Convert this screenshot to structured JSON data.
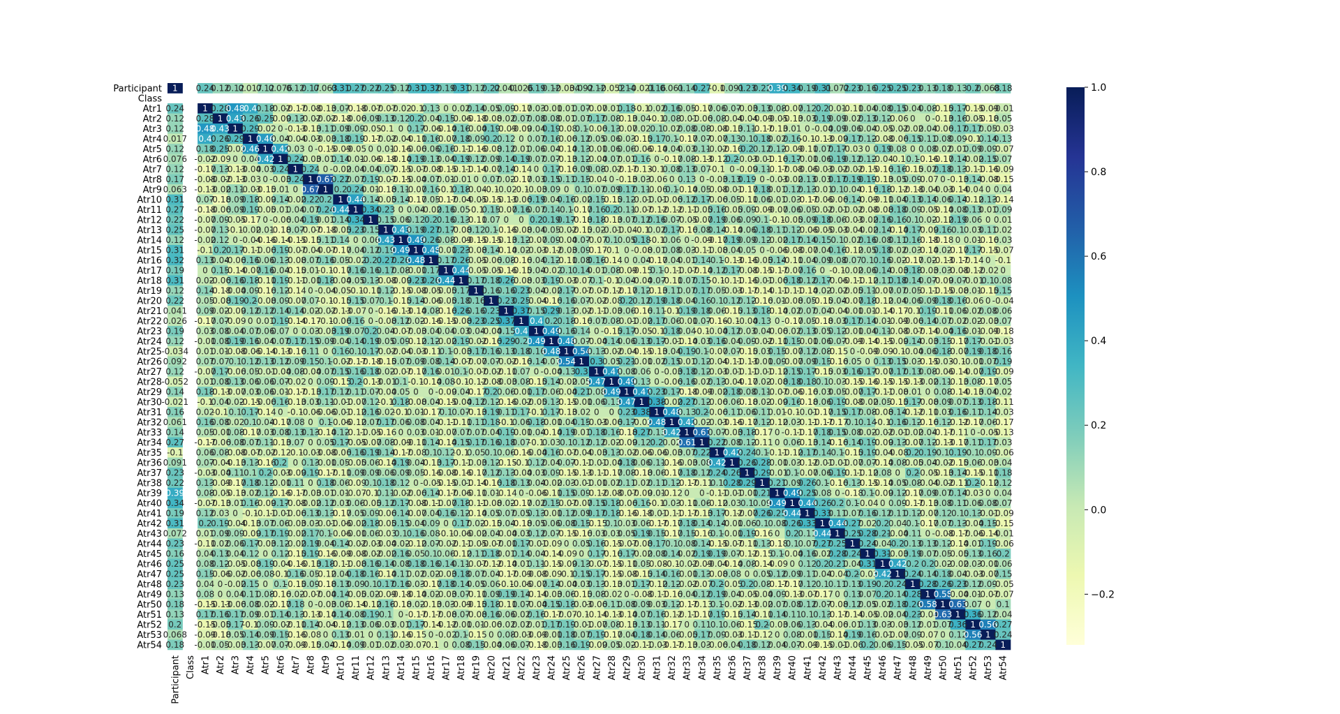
{
  "chart_data": {
    "type": "heatmap",
    "title": "",
    "xlabel": "",
    "ylabel": "",
    "row_labels": [
      "Participant",
      "Class",
      "Atr1",
      "Atr2",
      "Atr3",
      "Atr4",
      "Atr5",
      "Atr6",
      "Atr7",
      "Atr8",
      "Atr9",
      "Atr10",
      "Atr11",
      "Atr12",
      "Atr13",
      "Atr14",
      "Atr15",
      "Atr16",
      "Atr17",
      "Atr18",
      "Atr19",
      "Atr20",
      "Atr21",
      "Atr22",
      "Atr23",
      "Atr24",
      "Atr25",
      "Atr26",
      "Atr27",
      "Atr28",
      "Atr29",
      "Atr30",
      "Atr31",
      "Atr32",
      "Atr33",
      "Atr34",
      "Atr35",
      "Atr36",
      "Atr37",
      "Atr38",
      "Atr39",
      "Atr40",
      "Atr41",
      "Atr42",
      "Atr43",
      "Atr44",
      "Atr45",
      "Atr46",
      "Atr47",
      "Atr48",
      "Atr49",
      "Atr50",
      "Atr51",
      "Atr52",
      "Atr53",
      "Atr54"
    ],
    "col_labels": [
      "Participant",
      "Class",
      "Atr1",
      "Atr2",
      "Atr3",
      "Atr4",
      "Atr5",
      "Atr6",
      "Atr7",
      "Atr8",
      "Atr9",
      "Atr10",
      "Atr11",
      "Atr12",
      "Atr13",
      "Atr14",
      "Atr15",
      "Atr16",
      "Atr17",
      "Atr18",
      "Atr19",
      "Atr20",
      "Atr21",
      "Atr22",
      "Atr23",
      "Atr24",
      "Atr25",
      "Atr26",
      "Atr27",
      "Atr28",
      "Atr29",
      "Atr30",
      "Atr31",
      "Atr32",
      "Atr33",
      "Atr34",
      "Atr35",
      "Atr36",
      "Atr37",
      "Atr38",
      "Atr39",
      "Atr40",
      "Atr41",
      "Atr42",
      "Atr43",
      "Atr44",
      "Atr45",
      "Atr46",
      "Atr47",
      "Atr48",
      "Atr49",
      "Atr50",
      "Atr51",
      "Atr52",
      "Atr53",
      "Atr54"
    ],
    "participant_correlations": [
      1,
      null,
      0.24,
      0.12,
      0.12,
      0.017,
      0.12,
      0.076,
      0.12,
      0.17,
      0.063,
      0.31,
      0.27,
      0.22,
      0.25,
      0.12,
      0.31,
      0.32,
      0.19,
      0.31,
      0.12,
      0.22,
      0.041,
      0.026,
      0.19,
      0.12,
      -0.034,
      0.092,
      0.12,
      -0.052,
      0.14,
      -0.021,
      0.16,
      0.061,
      0.14,
      0.27,
      -0.1,
      0.091,
      0.23,
      0.22,
      0.39,
      0.34,
      0.19,
      0.31,
      0.072,
      0.23,
      0.16,
      0.25,
      0.25,
      0.23,
      0.13,
      0.18,
      0.13,
      0.2,
      0.068,
      0.18
    ],
    "notable_values": [
      {
        "row": "Atr1",
        "col": "Atr3",
        "value": 0.48
      },
      {
        "row": "Atr1",
        "col": "Atr4",
        "value": 0.4
      },
      {
        "row": "Atr2",
        "col": "Atr4",
        "value": 0.26
      },
      {
        "row": "Atr8",
        "col": "Atr9",
        "value": 0.67
      },
      {
        "row": "Atr10",
        "col": "Atr11",
        "value": 0.44
      },
      {
        "row": "Atr11",
        "col": "Atr12",
        "value": 0.34
      },
      {
        "row": "Atr13",
        "col": "Atr14",
        "value": 0.43
      },
      {
        "row": "Atr15",
        "col": "Atr16",
        "value": 0.48
      },
      {
        "row": "Atr17",
        "col": "Atr18",
        "value": 0.44
      },
      {
        "row": "Atr22",
        "col": "Atr23",
        "value": 0.4
      },
      {
        "row": "Atr23",
        "col": "Atr24",
        "value": 0.49
      },
      {
        "row": "Atr25",
        "col": "Atr26",
        "value": 0.54
      },
      {
        "row": "Atr27",
        "col": "Atr28",
        "value": 0.47
      },
      {
        "row": "Atr28",
        "col": "Atr29",
        "value": 0.49
      },
      {
        "row": "Atr33",
        "col": "Atr34",
        "value": 0.61
      },
      {
        "row": "Atr31",
        "col": "Atr32",
        "value": 0.48
      },
      {
        "row": "Atr35",
        "col": "Atr36",
        "value": 0.42
      },
      {
        "row": "Atr39",
        "col": "Atr40",
        "value": 0.49
      },
      {
        "row": "Atr42",
        "col": "Atr43",
        "value": 0.44
      },
      {
        "row": "Atr46",
        "col": "Atr47",
        "value": 0.42
      },
      {
        "row": "Atr49",
        "col": "Atr50",
        "value": 0.58
      },
      {
        "row": "Atr50",
        "col": "Atr51",
        "value": 0.63
      },
      {
        "row": "Atr52",
        "col": "Atr53",
        "value": 0.56
      }
    ],
    "colorscale": "YlGnBu",
    "vmin": -0.32,
    "vmax": 1.0,
    "colorbar_ticks": [
      1.0,
      0.8,
      0.6,
      0.4,
      0.2,
      0.0,
      -0.2
    ],
    "colorbar_tick_labels": [
      "1.0",
      "0.8",
      "0.6",
      "0.4",
      "0.2",
      "0.0",
      "−0.2"
    ],
    "grid": false,
    "legend": "colorbar-right"
  }
}
